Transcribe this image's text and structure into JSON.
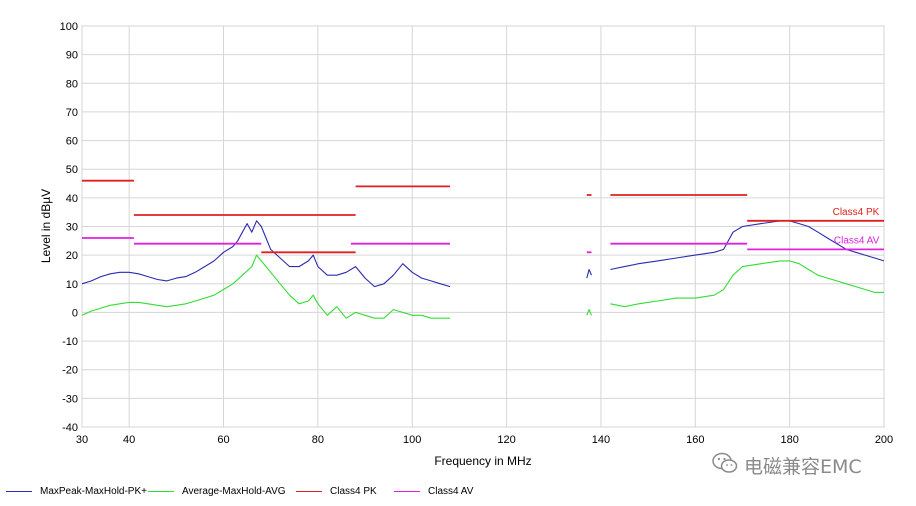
{
  "chart_data": {
    "type": "line",
    "title": "",
    "xlabel": "Frequency in MHz",
    "ylabel": "Level in dBµV",
    "xlim": [
      30,
      200
    ],
    "ylim": [
      -40,
      100
    ],
    "x_ticks": [
      30,
      40,
      60,
      80,
      100,
      120,
      140,
      160,
      180,
      200
    ],
    "y_ticks": [
      -40,
      -30,
      -20,
      -10,
      0,
      10,
      20,
      30,
      40,
      50,
      60,
      70,
      80,
      90,
      100
    ],
    "grid": true,
    "legend_position": "bottom",
    "series": [
      {
        "name": "MaxPeak-MaxHold-PK+",
        "color": "#2b2bb0",
        "segments": [
          [
            [
              30,
              10
            ],
            [
              32,
              11
            ],
            [
              34,
              12.5
            ],
            [
              36,
              13.5
            ],
            [
              38,
              14
            ],
            [
              40,
              14
            ],
            [
              42,
              13.5
            ],
            [
              44,
              12.5
            ],
            [
              46,
              11.5
            ],
            [
              48,
              11
            ],
            [
              50,
              12
            ],
            [
              52,
              12.5
            ],
            [
              54,
              14
            ],
            [
              56,
              16
            ],
            [
              58,
              18
            ],
            [
              60,
              21
            ],
            [
              62,
              23
            ],
            [
              63,
              25
            ],
            [
              64,
              28
            ],
            [
              65,
              31
            ],
            [
              66,
              28
            ],
            [
              67,
              32
            ],
            [
              68,
              30
            ],
            [
              69,
              26
            ],
            [
              70,
              22
            ],
            [
              72,
              19
            ],
            [
              74,
              16
            ],
            [
              76,
              16
            ],
            [
              78,
              18
            ],
            [
              79,
              20
            ],
            [
              80,
              16
            ],
            [
              82,
              13
            ],
            [
              84,
              13
            ],
            [
              86,
              14
            ],
            [
              88,
              16
            ],
            [
              90,
              12
            ],
            [
              92,
              9
            ],
            [
              94,
              10
            ],
            [
              96,
              13
            ],
            [
              98,
              17
            ],
            [
              100,
              14
            ],
            [
              102,
              12
            ],
            [
              104,
              11
            ],
            [
              106,
              10
            ],
            [
              108,
              9
            ]
          ],
          [
            [
              137,
              12
            ],
            [
              137.5,
              15
            ],
            [
              138,
              13
            ]
          ],
          [
            [
              142,
              15
            ],
            [
              145,
              16
            ],
            [
              148,
              17
            ],
            [
              152,
              18
            ],
            [
              156,
              19
            ],
            [
              160,
              20
            ],
            [
              164,
              21
            ],
            [
              166,
              22
            ],
            [
              168,
              28
            ],
            [
              170,
              30
            ],
            [
              174,
              31
            ],
            [
              178,
              32
            ],
            [
              180,
              32
            ],
            [
              182,
              31
            ],
            [
              184,
              30
            ],
            [
              186,
              28
            ],
            [
              188,
              26
            ],
            [
              190,
              24
            ],
            [
              192,
              22
            ],
            [
              194,
              21
            ],
            [
              196,
              20
            ],
            [
              198,
              19
            ],
            [
              200,
              18
            ]
          ]
        ]
      },
      {
        "name": "Average-MaxHold-AVG",
        "color": "#33dd33",
        "segments": [
          [
            [
              30,
              -1
            ],
            [
              32,
              0.5
            ],
            [
              34,
              1.5
            ],
            [
              36,
              2.5
            ],
            [
              38,
              3
            ],
            [
              40,
              3.5
            ],
            [
              42,
              3.5
            ],
            [
              44,
              3
            ],
            [
              46,
              2.5
            ],
            [
              48,
              2
            ],
            [
              50,
              2.5
            ],
            [
              52,
              3
            ],
            [
              54,
              4
            ],
            [
              56,
              5
            ],
            [
              58,
              6
            ],
            [
              60,
              8
            ],
            [
              62,
              10
            ],
            [
              64,
              13
            ],
            [
              66,
              16
            ],
            [
              67,
              20
            ],
            [
              68,
              18
            ],
            [
              70,
              14
            ],
            [
              72,
              10
            ],
            [
              74,
              6
            ],
            [
              76,
              3
            ],
            [
              78,
              4
            ],
            [
              79,
              6
            ],
            [
              80,
              3
            ],
            [
              82,
              -1
            ],
            [
              84,
              2
            ],
            [
              86,
              -2
            ],
            [
              88,
              0
            ],
            [
              90,
              -1
            ],
            [
              92,
              -2
            ],
            [
              94,
              -2
            ],
            [
              96,
              1
            ],
            [
              98,
              0
            ],
            [
              100,
              -1
            ],
            [
              102,
              -1
            ],
            [
              104,
              -2
            ],
            [
              106,
              -2
            ],
            [
              108,
              -2
            ]
          ],
          [
            [
              137,
              -1
            ],
            [
              137.5,
              1
            ],
            [
              138,
              -1
            ]
          ],
          [
            [
              142,
              3
            ],
            [
              145,
              2
            ],
            [
              148,
              3
            ],
            [
              152,
              4
            ],
            [
              156,
              5
            ],
            [
              160,
              5
            ],
            [
              164,
              6
            ],
            [
              166,
              8
            ],
            [
              168,
              13
            ],
            [
              170,
              16
            ],
            [
              174,
              17
            ],
            [
              178,
              18
            ],
            [
              180,
              18
            ],
            [
              182,
              17
            ],
            [
              184,
              15
            ],
            [
              186,
              13
            ],
            [
              188,
              12
            ],
            [
              190,
              11
            ],
            [
              192,
              10
            ],
            [
              194,
              9
            ],
            [
              196,
              8
            ],
            [
              198,
              7
            ],
            [
              200,
              7
            ]
          ]
        ]
      },
      {
        "name": "Class4 PK",
        "color": "#e02020",
        "segments": [
          [
            [
              30,
              46
            ],
            [
              41,
              46
            ]
          ],
          [
            [
              41,
              34
            ],
            [
              88,
              34
            ]
          ],
          [
            [
              68,
              21
            ],
            [
              88,
              21
            ]
          ],
          [
            [
              88,
              44
            ],
            [
              108,
              44
            ]
          ],
          [
            [
              137,
              41
            ],
            [
              138,
              41
            ]
          ],
          [
            [
              142,
              41
            ],
            [
              171,
              41
            ]
          ],
          [
            [
              171,
              32
            ],
            [
              200,
              32
            ]
          ]
        ]
      },
      {
        "name": "Class4 AV",
        "color": "#e020e0",
        "segments": [
          [
            [
              30,
              26
            ],
            [
              41,
              26
            ]
          ],
          [
            [
              41,
              24
            ],
            [
              68,
              24
            ]
          ],
          [
            [
              87,
              24
            ],
            [
              108,
              24
            ]
          ],
          [
            [
              137,
              21
            ],
            [
              138,
              21
            ]
          ],
          [
            [
              142,
              24
            ],
            [
              171,
              24
            ]
          ],
          [
            [
              171,
              22
            ],
            [
              200,
              22
            ]
          ]
        ]
      }
    ],
    "annotations": [
      {
        "text": "Class4 PK",
        "x": 199,
        "y": 34,
        "color": "#e02020"
      },
      {
        "text": "Class4 AV",
        "x": 199,
        "y": 24,
        "color": "#e020e0"
      }
    ]
  },
  "legend": [
    {
      "label": "MaxPeak-MaxHold-PK+",
      "color": "#2b2bb0"
    },
    {
      "label": "Average-MaxHold-AVG",
      "color": "#33dd33"
    },
    {
      "label": "Class4 PK",
      "color": "#e02020"
    },
    {
      "label": "Class4 AV",
      "color": "#e020e0"
    }
  ],
  "watermark": {
    "text": "电磁兼容EMC",
    "icon": "wechat-icon"
  }
}
